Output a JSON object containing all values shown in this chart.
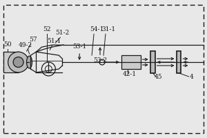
{
  "bg_color": "#e8e8e8",
  "line_color": "#1a1a1a",
  "fs": 6.5,
  "fs_small": 6.0
}
